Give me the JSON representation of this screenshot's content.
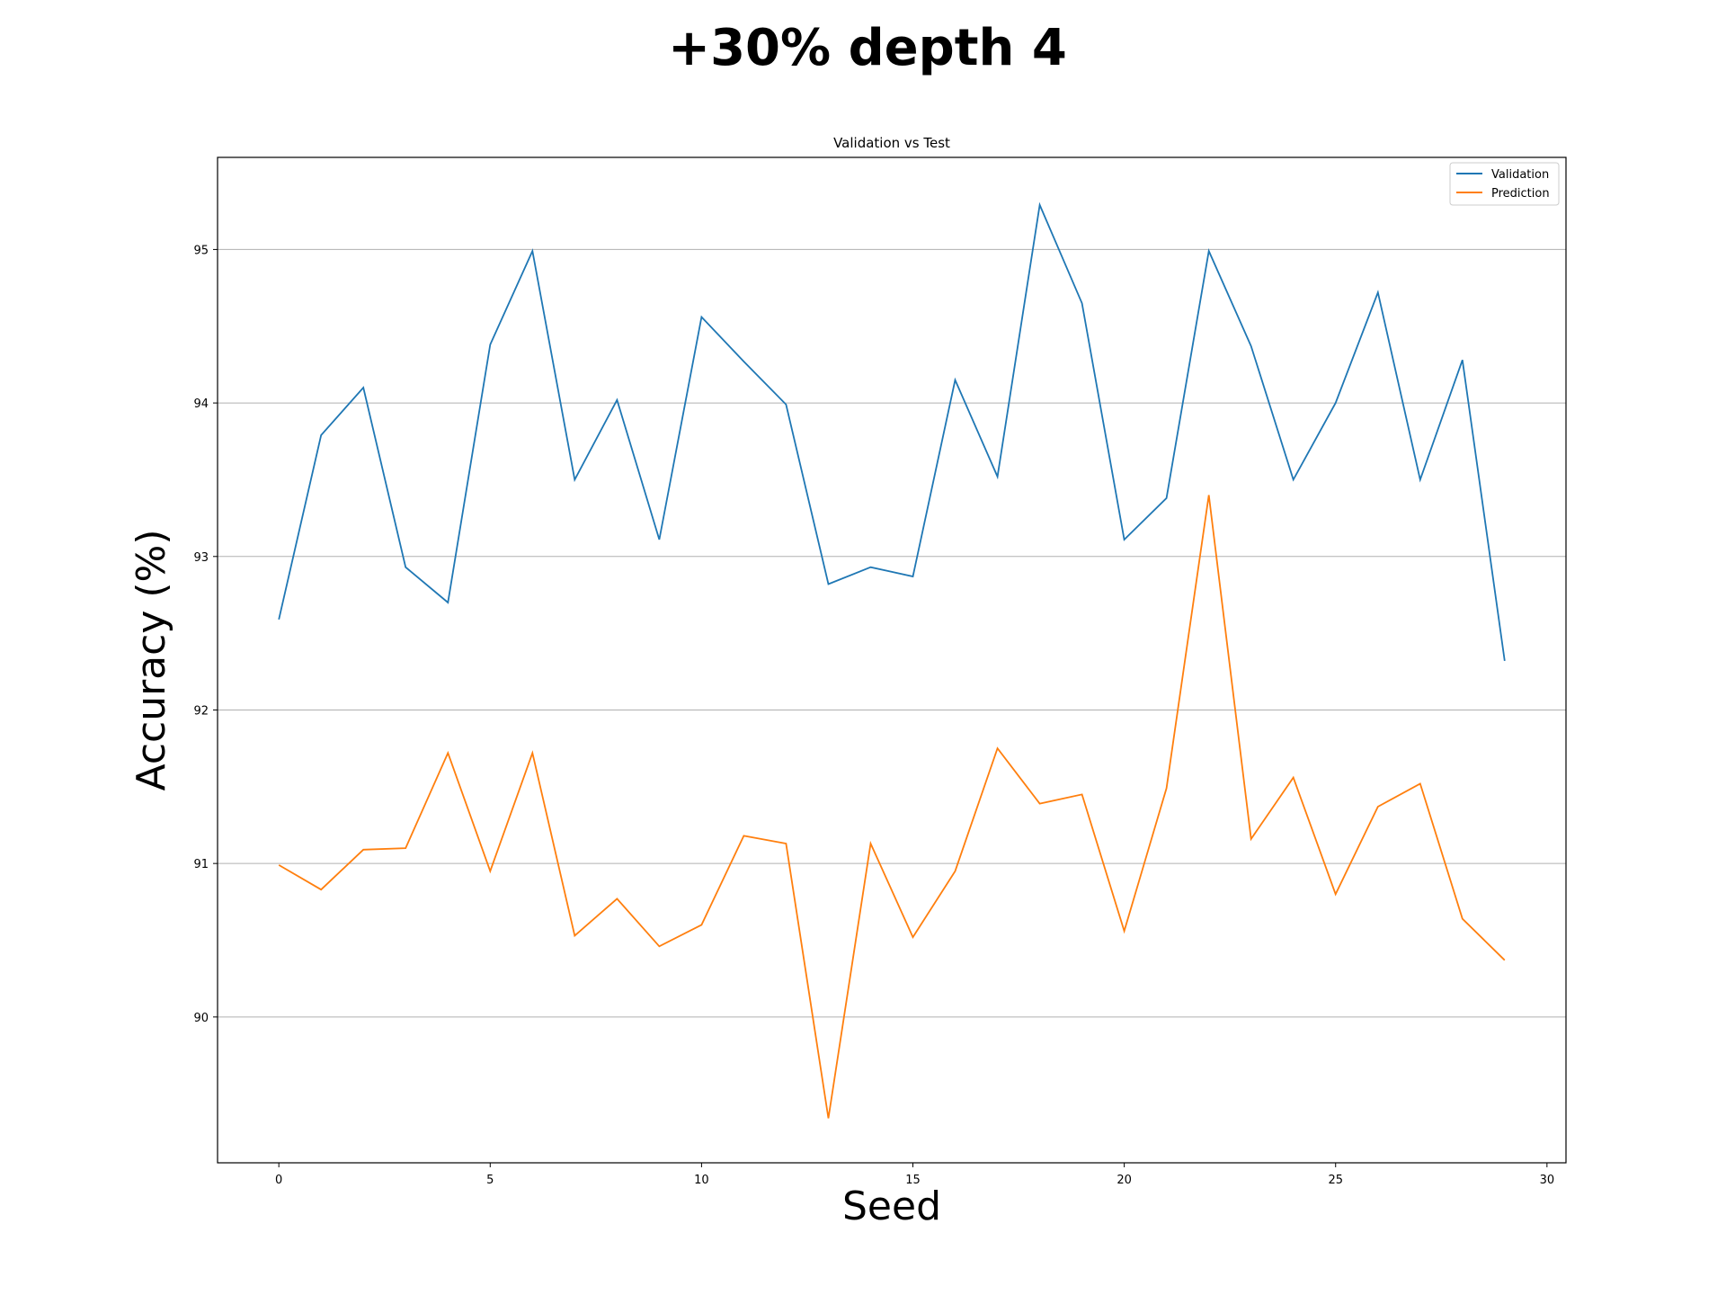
{
  "figure": {
    "suptitle": "+30% depth 4"
  },
  "chart_data": {
    "type": "line",
    "title": "Validation vs Test",
    "xlabel": "Seed",
    "ylabel": "Accuracy (%)",
    "xlim": [
      -1.45,
      30.45
    ],
    "ylim": [
      89.05,
      95.6
    ],
    "xticks": [
      0,
      5,
      10,
      15,
      20,
      25,
      30
    ],
    "yticks": [
      90,
      91,
      92,
      93,
      94,
      95
    ],
    "grid": "y",
    "legend_position": "top-right",
    "x": [
      0,
      1,
      2,
      3,
      4,
      5,
      6,
      7,
      8,
      9,
      10,
      11,
      12,
      13,
      14,
      15,
      16,
      17,
      18,
      19,
      20,
      21,
      22,
      23,
      24,
      25,
      26,
      27,
      28,
      29
    ],
    "series": [
      {
        "name": "Validation",
        "color": "#1f77b4",
        "values": [
          92.59,
          93.79,
          94.1,
          92.93,
          92.7,
          94.38,
          94.99,
          93.5,
          94.02,
          93.11,
          94.56,
          94.27,
          93.99,
          92.82,
          92.93,
          92.87,
          94.15,
          93.52,
          95.29,
          94.65,
          93.11,
          93.38,
          94.99,
          94.37,
          93.5,
          94.0,
          94.72,
          93.5,
          94.28,
          92.32
        ]
      },
      {
        "name": "Prediction",
        "color": "#ff7f0e",
        "values": [
          90.99,
          90.83,
          91.09,
          91.1,
          91.72,
          90.95,
          91.72,
          90.53,
          90.77,
          90.46,
          90.6,
          91.18,
          91.13,
          89.34,
          91.13,
          90.52,
          90.95,
          91.75,
          91.39,
          91.45,
          90.56,
          91.49,
          93.4,
          91.16,
          91.56,
          90.8,
          91.37,
          91.52,
          90.64,
          90.37
        ]
      }
    ]
  }
}
